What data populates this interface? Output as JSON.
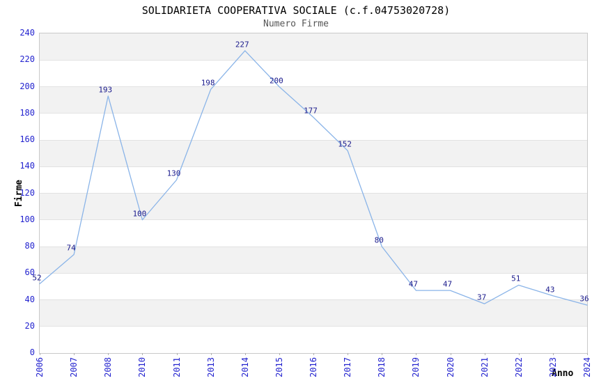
{
  "chart_data": {
    "type": "line",
    "title": "SOLIDARIETA COOPERATIVA SOCIALE (c.f.04753020728)",
    "subtitle": "Numero Firme",
    "xlabel": "Anno",
    "ylabel": "Firme",
    "categories": [
      "2006",
      "2007",
      "2008",
      "2010",
      "2011",
      "2013",
      "2014",
      "2015",
      "2016",
      "2017",
      "2018",
      "2019",
      "2020",
      "2021",
      "2022",
      "2023",
      "2024"
    ],
    "series": [
      {
        "name": "Numero Firme",
        "values": [
          52,
          74,
          193,
          100,
          130,
          198,
          227,
          200,
          177,
          152,
          80,
          47,
          47,
          37,
          51,
          43,
          36
        ]
      }
    ],
    "ylim": [
      0,
      240
    ],
    "yticks": [
      0,
      20,
      40,
      60,
      80,
      100,
      120,
      140,
      160,
      180,
      200,
      220,
      240
    ],
    "grid": "horizontal alternating bands, boundary lines at every 20",
    "legend": "none",
    "point_labels_shown": true,
    "colors": {
      "line": "#8ab4e8",
      "point_label": "#1a1a8c",
      "tick_label": "#2323cf",
      "title": "#000000",
      "subtitle": "#555555",
      "band_gray": "#f2f2f2",
      "grid_line": "#e2e2e2",
      "plot_border": "#c9c9c9",
      "axis_title": "#000000"
    }
  }
}
